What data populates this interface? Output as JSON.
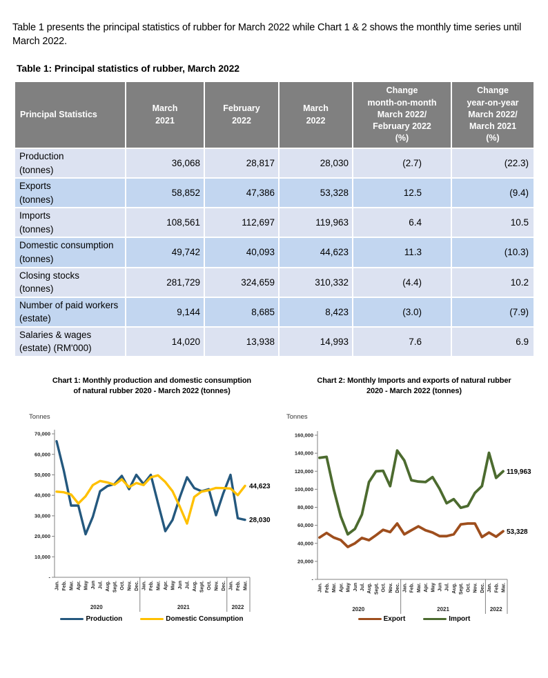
{
  "intro_text": "Table 1 presents the principal statistics of rubber for March 2022 while Chart 1 & 2 shows the monthly time series until March 2022.",
  "theme": {
    "page_bg": "#FFFFFF",
    "header_bg": "#808080",
    "header_text": "#FFFFFF",
    "row_light": "#DCE2F1",
    "row_blue": "#C2D6F0",
    "axis_color": "#808080",
    "tick_text": "#262626"
  },
  "table": {
    "title": "Table 1: Principal statistics of rubber, March 2022",
    "columns": [
      "Principal Statistics",
      "March\n2021",
      "February\n2022",
      "March\n2022",
      "Change\nmonth-on-month\nMarch 2022/\nFebruary 2022\n(%)",
      "Change\nyear-on-year\nMarch 2022/\nMarch 2021\n(%)"
    ],
    "rows": [
      {
        "label": "Production\n(tonnes)",
        "values": [
          "36,068",
          "28,817",
          "28,030",
          "(2.7)",
          "(22.3)"
        ]
      },
      {
        "label": "Exports\n(tonnes)",
        "values": [
          "58,852",
          "47,386",
          "53,328",
          "12.5",
          "(9.4)"
        ]
      },
      {
        "label": "Imports\n(tonnes)",
        "values": [
          "108,561",
          "112,697",
          "119,963",
          "6.4",
          "10.5"
        ]
      },
      {
        "label": "Domestic consumption\n(tonnes)",
        "values": [
          "49,742",
          "40,093",
          "44,623",
          "11.3",
          "(10.3)"
        ]
      },
      {
        "label": "Closing stocks\n(tonnes)",
        "values": [
          "281,729",
          "324,659",
          "310,332",
          "(4.4)",
          "10.2"
        ]
      },
      {
        "label": "Number of paid workers\n(estate)",
        "values": [
          "9,144",
          "8,685",
          "8,423",
          "(3.0)",
          "(7.9)"
        ]
      },
      {
        "label": "Salaries & wages\n(estate) (RM'000)",
        "values": [
          "14,020",
          "13,938",
          "14,993",
          "7.6",
          "6.9"
        ]
      }
    ]
  },
  "chart_data": [
    {
      "type": "line",
      "title": "Chart 1: Monthly production and domestic consumption\nof natural rubber 2020 - March 2022 (tonnes)",
      "ylabel": "Tonnes",
      "ylim": [
        0,
        70000
      ],
      "ytick_labels": [
        "70,000",
        "60,000",
        "50,000",
        "40,000",
        "30,000",
        "20,000",
        "10,000",
        "-"
      ],
      "grid": false,
      "legend_position": "bottom",
      "categories": [
        "Jan.",
        "Feb.",
        "Mar.",
        "Apr.",
        "May",
        "Jun",
        "Jul.",
        "Aug.",
        "Sept.",
        "Oct.",
        "Nov.",
        "Dec.",
        "Jan.",
        "Feb.",
        "Mar.",
        "Apr.",
        "May",
        "Jun",
        "Jul.",
        "Aug.",
        "Sept.",
        "Oct.",
        "Nov.",
        "Dec.",
        "Jan.",
        "Feb.",
        "Mar."
      ],
      "year_groups": [
        {
          "label": "2020",
          "months": 12
        },
        {
          "label": "2021",
          "months": 12
        },
        {
          "label": "2022",
          "months": 3
        }
      ],
      "series": [
        {
          "name": "Production",
          "color": "#24587E",
          "values": [
            66400,
            52000,
            35000,
            35000,
            21000,
            29500,
            42000,
            44500,
            45500,
            49500,
            43000,
            50000,
            45500,
            50000,
            36068,
            22500,
            28000,
            39000,
            48800,
            43500,
            42000,
            43000,
            30300,
            41000,
            50000,
            28817,
            28030
          ],
          "end_label": "28,030"
        },
        {
          "name": "Domestic Consumption",
          "color": "#FFC000",
          "values": [
            41800,
            41500,
            40400,
            36000,
            39500,
            45000,
            47000,
            46300,
            45200,
            47800,
            44000,
            46000,
            45000,
            48800,
            49742,
            46500,
            42000,
            34500,
            26200,
            39200,
            41800,
            42500,
            43600,
            43500,
            43300,
            40093,
            44623
          ],
          "end_label": "44,623"
        }
      ]
    },
    {
      "type": "line",
      "title": "Chart 2: Monthly Imports and exports of natural rubber\n2020 - March 2022 (tonnes)",
      "ylabel": "Tonnes",
      "ylim": [
        0,
        160000
      ],
      "ytick_labels": [
        "160,000",
        "140,000",
        "120,000",
        "100,000",
        "80,000",
        "60,000",
        "40,000",
        "20,000",
        "-"
      ],
      "grid": false,
      "legend_position": "bottom",
      "categories": [
        "Jan.",
        "Feb.",
        "Mar.",
        "Apr.",
        "May",
        "Jun",
        "Jul.",
        "Aug.",
        "Sept.",
        "Oct.",
        "Nov.",
        "Dec.",
        "Jan.",
        "Feb.",
        "Mar.",
        "Apr.",
        "May",
        "Jun",
        "Jul.",
        "Aug.",
        "Sept.",
        "Oct.",
        "Nov.",
        "Dec.",
        "Jan.",
        "Feb.",
        "Mar."
      ],
      "year_groups": [
        {
          "label": "2020",
          "months": 12
        },
        {
          "label": "2021",
          "months": 12
        },
        {
          "label": "2022",
          "months": 3
        }
      ],
      "series": [
        {
          "name": "Export",
          "color": "#9E4E1D",
          "values": [
            46500,
            51500,
            46500,
            43600,
            36000,
            40000,
            46000,
            43500,
            49000,
            55000,
            52500,
            62000,
            50000,
            54500,
            58852,
            54500,
            52000,
            48000,
            48000,
            50000,
            61000,
            62000,
            62000,
            47000,
            52000,
            47386,
            53328
          ],
          "end_label": "53,328"
        },
        {
          "name": "Import",
          "color": "#4C6B2F",
          "values": [
            135000,
            136000,
            100000,
            70000,
            50000,
            56000,
            72000,
            108000,
            120000,
            120500,
            103500,
            143000,
            132000,
            110000,
            108561,
            108000,
            113500,
            100500,
            84500,
            89000,
            79500,
            81500,
            96000,
            103500,
            140500,
            112697,
            119963
          ],
          "end_label": "119,963"
        }
      ]
    }
  ]
}
